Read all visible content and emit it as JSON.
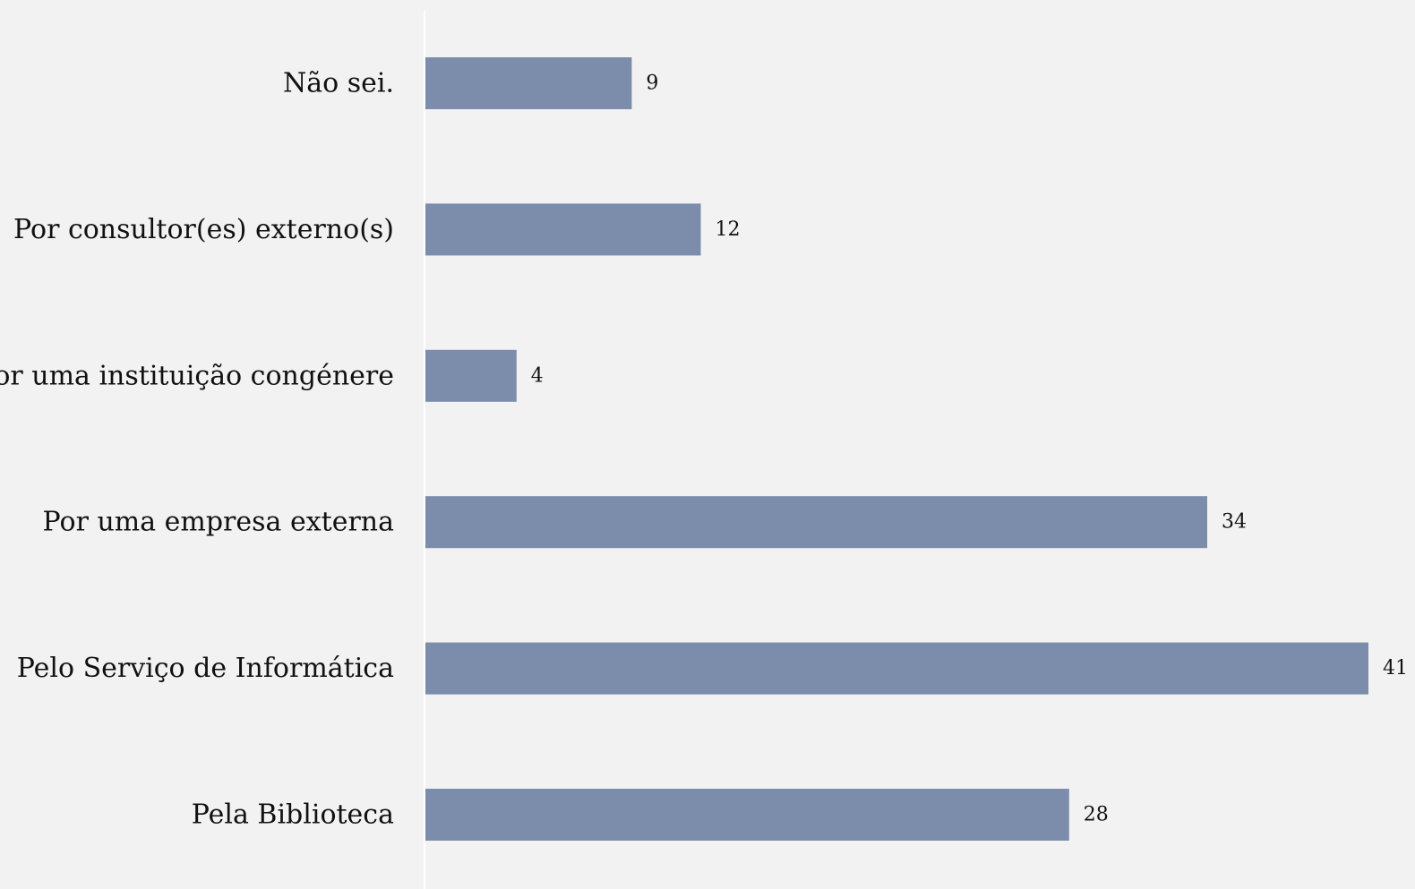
{
  "chart_data": {
    "type": "bar",
    "orientation": "horizontal",
    "categories": [
      "Não sei.",
      "Por consultor(es) externo(s)",
      "Por uma instituição congénere",
      "Por uma empresa externa",
      "Pelo Serviço de Informática",
      "Pela Biblioteca"
    ],
    "values": [
      9,
      12,
      4,
      34,
      41,
      28
    ],
    "title": "",
    "xlabel": "",
    "ylabel": "",
    "xlim": [
      0,
      41
    ],
    "grid": false,
    "legend": "none",
    "data_labels": true,
    "colors": {
      "background": "#f2f2f2",
      "bar": "#7b8dab",
      "axis": "#ffffff",
      "text": "#111111"
    }
  }
}
